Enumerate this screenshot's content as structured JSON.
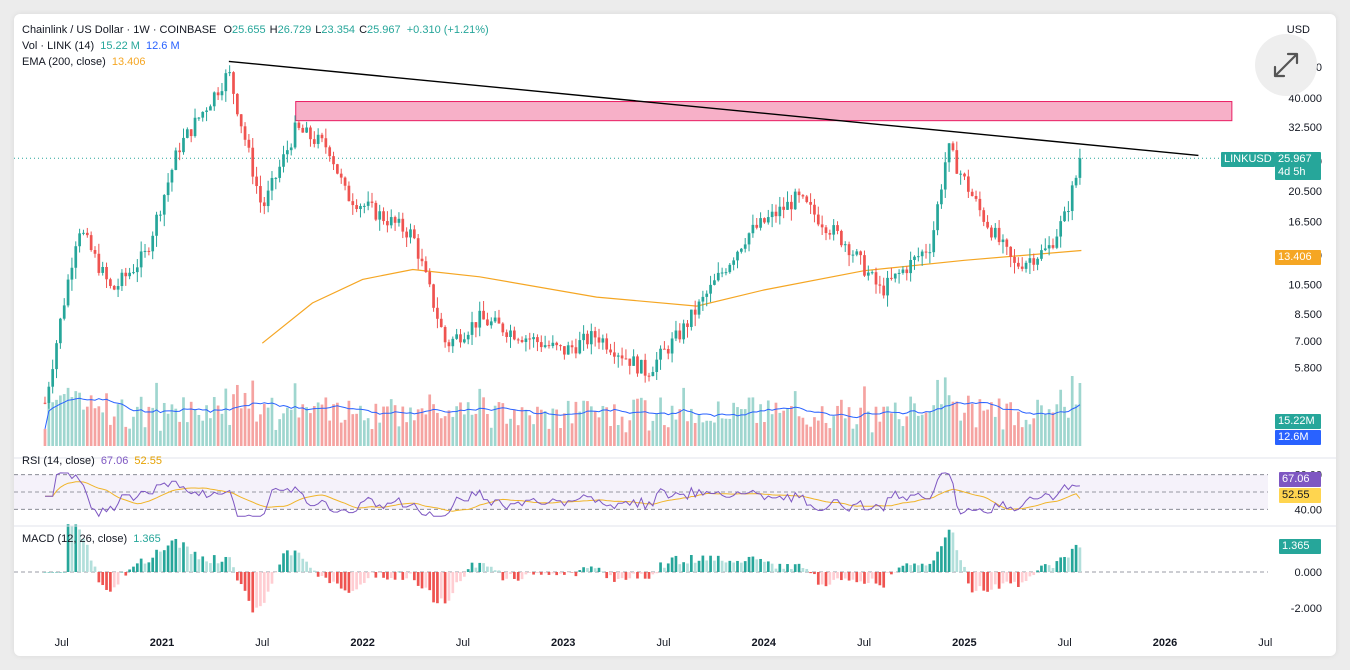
{
  "header": {
    "title": "Chainlink / US Dollar · 1W · COINBASE",
    "ohlc": [
      {
        "k": "O",
        "v": "25.655"
      },
      {
        "k": "H",
        "v": "26.729"
      },
      {
        "k": "L",
        "v": "23.354"
      },
      {
        "k": "C",
        "v": "25.967"
      }
    ],
    "change": "+0.310 (+1.21%)",
    "vol_label": "Vol · LINK (14)",
    "vol_value": "15.22 M",
    "vol_ma_value": "12.6 M",
    "ema_label": "EMA (200, close)",
    "ema_value": "13.406",
    "currency": "USD"
  },
  "tags": {
    "symbol": "LINKUSD",
    "price": "25.967",
    "countdown": "4d 5h",
    "ema": "13.406",
    "volume": "15.22M",
    "volume_ma": "12.6M",
    "rsi": "67.06",
    "rsi_ma": "52.55",
    "macd": "1.365"
  },
  "rsi_legend": {
    "label": "RSI (14, close)",
    "value": "67.06",
    "ma_value": "52.55"
  },
  "macd_legend": {
    "label": "MACD (12, 26, close)",
    "value": "1.365"
  },
  "colors": {
    "up": "#26a69a",
    "down": "#ef5350",
    "vol_up": "#9fd6cf",
    "vol_down": "#f5a3a1",
    "ema": "#f5a623",
    "vol_ma": "#2962ff",
    "rsi": "#7e57c2",
    "rsi_ma": "#f0b429",
    "zone": "#f48fb1",
    "trend": "#000000"
  },
  "chart_data": [
    {
      "type": "candlestick",
      "title": "Chainlink / US Dollar · 1W · COINBASE",
      "scale": "log",
      "price_ticks": [
        "5.800",
        "7.000",
        "8.500",
        "10.500",
        "13.000",
        "16.500",
        "20.500",
        "25.500",
        "32.500",
        "40.000",
        "50.000"
      ],
      "time_labels": [
        "Jul",
        "2021",
        "Jul",
        "2022",
        "Jul",
        "2023",
        "Jul",
        "2024",
        "Jul",
        "2025",
        "Jul",
        "2026",
        "Jul"
      ],
      "anchors": [
        {
          "t": "2020-06",
          "p": 4.5
        },
        {
          "t": "2020-08",
          "p": 16
        },
        {
          "t": "2020-10",
          "p": 10
        },
        {
          "t": "2020-12",
          "p": 13
        },
        {
          "t": "2021-02",
          "p": 28
        },
        {
          "t": "2021-05",
          "p": 48
        },
        {
          "t": "2021-07",
          "p": 18
        },
        {
          "t": "2021-09",
          "p": 32
        },
        {
          "t": "2021-11",
          "p": 28
        },
        {
          "t": "2021-12",
          "p": 20
        },
        {
          "t": "2022-04",
          "p": 15
        },
        {
          "t": "2022-06",
          "p": 6.8
        },
        {
          "t": "2022-08",
          "p": 8.2
        },
        {
          "t": "2023-01",
          "p": 6.5
        },
        {
          "t": "2023-03",
          "p": 7.3
        },
        {
          "t": "2023-06",
          "p": 5.6
        },
        {
          "t": "2023-08",
          "p": 7.4
        },
        {
          "t": "2023-10",
          "p": 10.5
        },
        {
          "t": "2023-12",
          "p": 15
        },
        {
          "t": "2024-03",
          "p": 19.5
        },
        {
          "t": "2024-06",
          "p": 14
        },
        {
          "t": "2024-08",
          "p": 10
        },
        {
          "t": "2024-11",
          "p": 14
        },
        {
          "t": "2024-12",
          "p": 28
        },
        {
          "t": "2025-02",
          "p": 17.5
        },
        {
          "t": "2025-04",
          "p": 12
        },
        {
          "t": "2025-06",
          "p": 13.5
        },
        {
          "t": "2025-07",
          "p": 17
        },
        {
          "t": "2025-08",
          "p": 25.967
        }
      ],
      "ema200": [
        {
          "t": "2021-07",
          "p": 6.9
        },
        {
          "t": "2021-10",
          "p": 9.2
        },
        {
          "t": "2022-01",
          "p": 10.9
        },
        {
          "t": "2022-04",
          "p": 11.7
        },
        {
          "t": "2022-08",
          "p": 11.1
        },
        {
          "t": "2023-03",
          "p": 9.6
        },
        {
          "t": "2023-09",
          "p": 9.0
        },
        {
          "t": "2024-01",
          "p": 10.1
        },
        {
          "t": "2024-07",
          "p": 11.6
        },
        {
          "t": "2025-01",
          "p": 12.5
        },
        {
          "t": "2025-08",
          "p": 13.406
        }
      ],
      "resistance_zone": {
        "from": "2021-09",
        "to": "2026-05",
        "low": 34.0,
        "high": 39.0
      },
      "trendline": [
        {
          "t": "2021-05",
          "p": 52
        },
        {
          "t": "2026-03",
          "p": 26.5
        }
      ],
      "last_price": 25.967
    },
    {
      "type": "line",
      "title": "RSI (14, close)",
      "levels": [
        80,
        60,
        40
      ],
      "ylim": [
        30,
        90
      ],
      "y_ticks": [
        "80.00",
        "40.00"
      ],
      "last_rsi": 67.06,
      "last_rsi_ma": 52.55
    },
    {
      "type": "bar",
      "title": "MACD (12, 26, close)",
      "y_ticks": [
        "0.000",
        "-2.000"
      ],
      "last_value": 1.365
    }
  ]
}
